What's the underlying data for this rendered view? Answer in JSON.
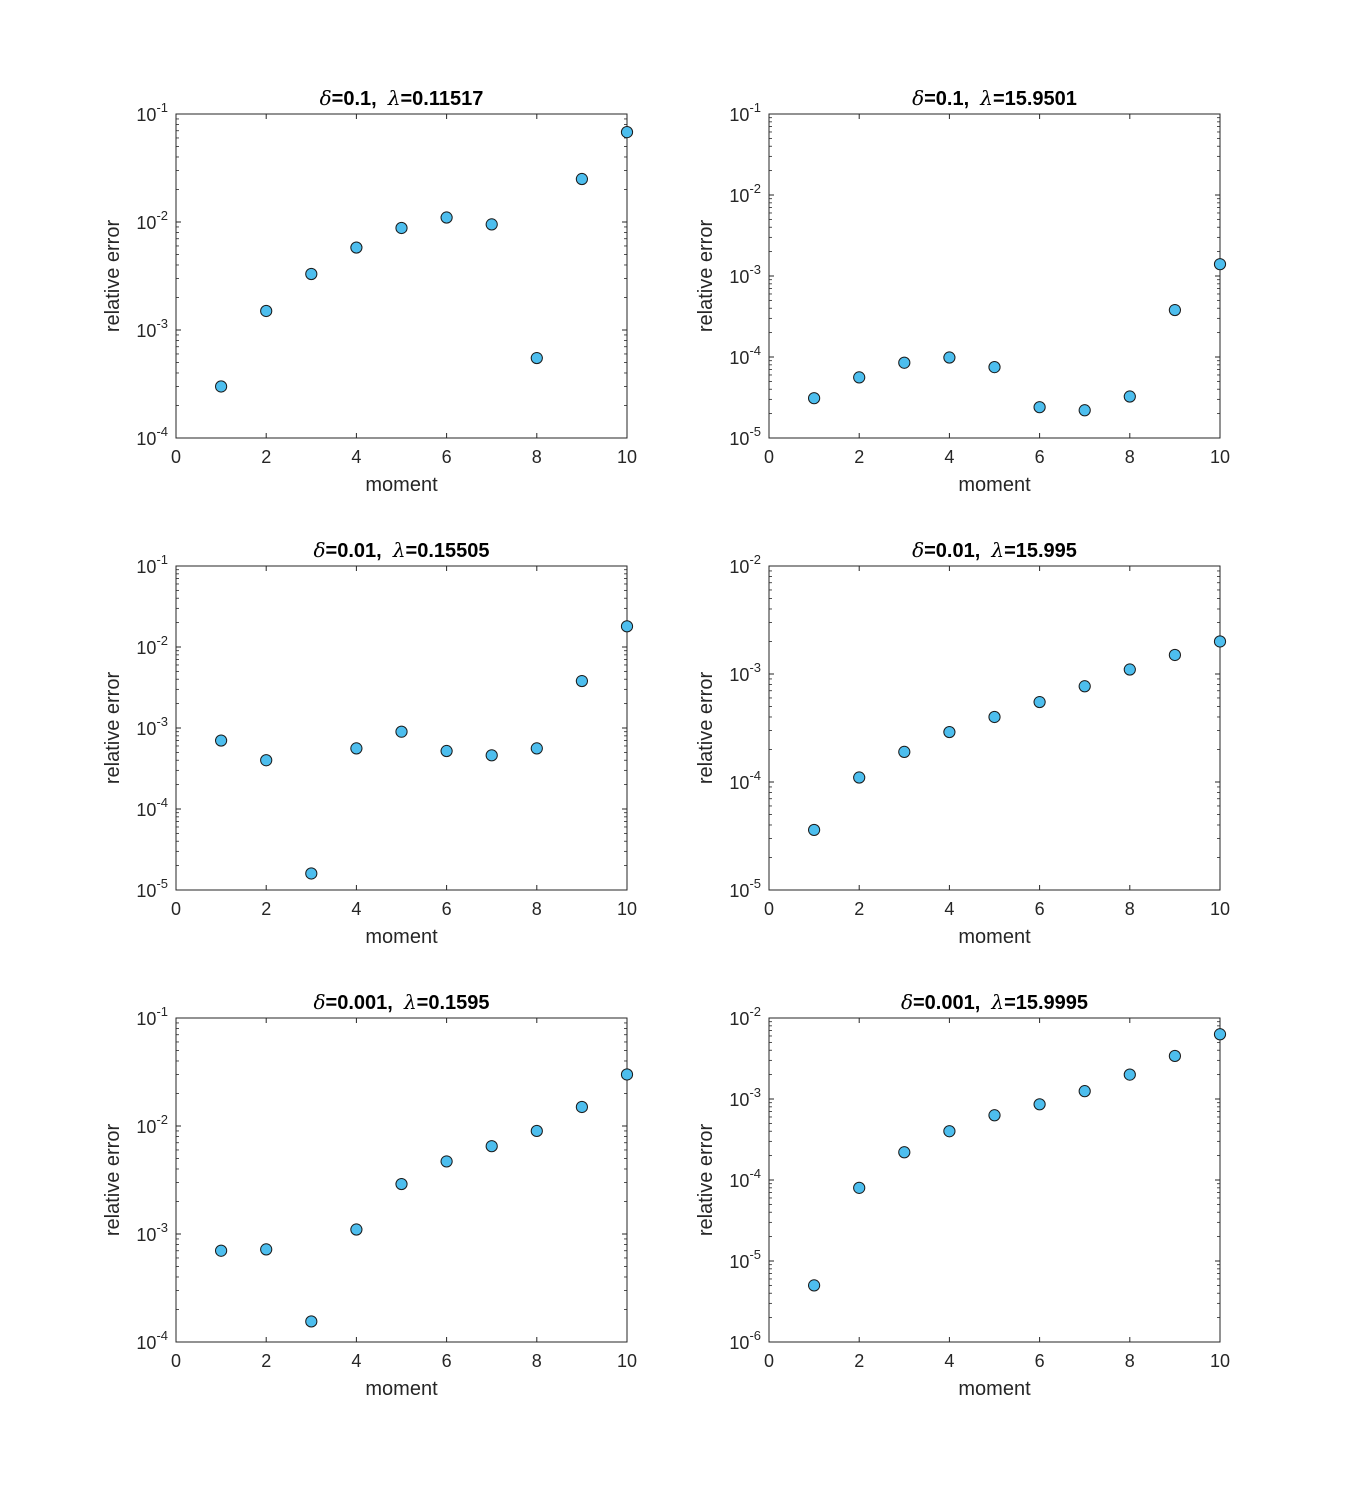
{
  "colors": {
    "marker_fill": "#4DBEEE",
    "marker_edge": "#1A1A1A",
    "axis": "#262626",
    "title": "#000000"
  },
  "chart_data": [
    {
      "type": "scatter",
      "yscale": "log",
      "title_parts": {
        "delta_symbol": "δ",
        "delta_text": "=0.1,",
        "lambda_symbol": "λ",
        "lambda_text": "=0.11517"
      },
      "xlabel": "moment",
      "ylabel": "relative error",
      "xlim": [
        0,
        10
      ],
      "xticks": [
        0,
        2,
        4,
        6,
        8,
        10
      ],
      "ylim_exp": [
        -4,
        -1
      ],
      "yticks": [
        {
          "base": "10",
          "exp": "-4"
        },
        {
          "base": "10",
          "exp": "-3"
        },
        {
          "base": "10",
          "exp": "-2"
        },
        {
          "base": "10",
          "exp": "-1"
        }
      ],
      "x": [
        1,
        2,
        3,
        4,
        5,
        6,
        7,
        8,
        9,
        10
      ],
      "y": [
        0.0003,
        0.0015,
        0.0033,
        0.0058,
        0.0088,
        0.011,
        0.0095,
        0.00055,
        0.025,
        0.068
      ]
    },
    {
      "type": "scatter",
      "yscale": "log",
      "title_parts": {
        "delta_symbol": "δ",
        "delta_text": "=0.1,",
        "lambda_symbol": "λ",
        "lambda_text": "=15.9501"
      },
      "xlabel": "moment",
      "ylabel": "relative error",
      "xlim": [
        0,
        10
      ],
      "xticks": [
        0,
        2,
        4,
        6,
        8,
        10
      ],
      "ylim_exp": [
        -5,
        -1
      ],
      "yticks": [
        {
          "base": "10",
          "exp": "-5"
        },
        {
          "base": "10",
          "exp": "-4"
        },
        {
          "base": "10",
          "exp": "-3"
        },
        {
          "base": "10",
          "exp": "-2"
        },
        {
          "base": "10",
          "exp": "-1"
        }
      ],
      "x": [
        1,
        2,
        3,
        4,
        5,
        6,
        7,
        8,
        9,
        10
      ],
      "y": [
        3.1e-05,
        5.6e-05,
        8.5e-05,
        9.85e-05,
        7.5e-05,
        2.4e-05,
        2.2e-05,
        3.25e-05,
        0.00038,
        0.0014
      ]
    },
    {
      "type": "scatter",
      "yscale": "log",
      "title_parts": {
        "delta_symbol": "δ",
        "delta_text": "=0.01,",
        "lambda_symbol": "λ",
        "lambda_text": "=0.15505"
      },
      "xlabel": "moment",
      "ylabel": "relative error",
      "xlim": [
        0,
        10
      ],
      "xticks": [
        0,
        2,
        4,
        6,
        8,
        10
      ],
      "ylim_exp": [
        -5,
        -1
      ],
      "yticks": [
        {
          "base": "10",
          "exp": "-5"
        },
        {
          "base": "10",
          "exp": "-4"
        },
        {
          "base": "10",
          "exp": "-3"
        },
        {
          "base": "10",
          "exp": "-2"
        },
        {
          "base": "10",
          "exp": "-1"
        }
      ],
      "x": [
        1,
        2,
        3,
        4,
        5,
        6,
        7,
        8,
        9,
        10
      ],
      "y": [
        0.0007,
        0.0004,
        1.6e-05,
        0.00056,
        0.0009,
        0.00052,
        0.00046,
        0.00056,
        0.0038,
        0.018
      ]
    },
    {
      "type": "scatter",
      "yscale": "log",
      "title_parts": {
        "delta_symbol": "δ",
        "delta_text": "=0.01,",
        "lambda_symbol": "λ",
        "lambda_text": "=15.995"
      },
      "xlabel": "moment",
      "ylabel": "relative error",
      "xlim": [
        0,
        10
      ],
      "xticks": [
        0,
        2,
        4,
        6,
        8,
        10
      ],
      "ylim_exp": [
        -5,
        -2
      ],
      "yticks": [
        {
          "base": "10",
          "exp": "-5"
        },
        {
          "base": "10",
          "exp": "-4"
        },
        {
          "base": "10",
          "exp": "-3"
        },
        {
          "base": "10",
          "exp": "-2"
        }
      ],
      "x": [
        1,
        2,
        3,
        4,
        5,
        6,
        7,
        8,
        9,
        10
      ],
      "y": [
        3.6e-05,
        0.00011,
        0.00019,
        0.00029,
        0.0004,
        0.00055,
        0.00077,
        0.0011,
        0.0015,
        0.002
      ]
    },
    {
      "type": "scatter",
      "yscale": "log",
      "title_parts": {
        "delta_symbol": "δ",
        "delta_text": "=0.001,",
        "lambda_symbol": "λ",
        "lambda_text": "=0.1595"
      },
      "xlabel": "moment",
      "ylabel": "relative error",
      "xlim": [
        0,
        10
      ],
      "xticks": [
        0,
        2,
        4,
        6,
        8,
        10
      ],
      "ylim_exp": [
        -4,
        -1
      ],
      "yticks": [
        {
          "base": "10",
          "exp": "-4"
        },
        {
          "base": "10",
          "exp": "-3"
        },
        {
          "base": "10",
          "exp": "-2"
        },
        {
          "base": "10",
          "exp": "-1"
        }
      ],
      "x": [
        1,
        2,
        3,
        4,
        5,
        6,
        7,
        8,
        9,
        10
      ],
      "y": [
        0.0007,
        0.00072,
        0.000155,
        0.0011,
        0.0029,
        0.0047,
        0.0065,
        0.009,
        0.015,
        0.03
      ]
    },
    {
      "type": "scatter",
      "yscale": "log",
      "title_parts": {
        "delta_symbol": "δ",
        "delta_text": "=0.001,",
        "lambda_symbol": "λ",
        "lambda_text": "=15.9995"
      },
      "xlabel": "moment",
      "ylabel": "relative error",
      "xlim": [
        0,
        10
      ],
      "xticks": [
        0,
        2,
        4,
        6,
        8,
        10
      ],
      "ylim_exp": [
        -6,
        -2
      ],
      "yticks": [
        {
          "base": "10",
          "exp": "-6"
        },
        {
          "base": "10",
          "exp": "-5"
        },
        {
          "base": "10",
          "exp": "-4"
        },
        {
          "base": "10",
          "exp": "-3"
        },
        {
          "base": "10",
          "exp": "-2"
        }
      ],
      "x": [
        1,
        2,
        3,
        4,
        5,
        6,
        7,
        8,
        9,
        10
      ],
      "y": [
        5e-06,
        8e-05,
        0.00022,
        0.0004,
        0.00063,
        0.00086,
        0.00125,
        0.002,
        0.0034,
        0.0063
      ]
    }
  ]
}
